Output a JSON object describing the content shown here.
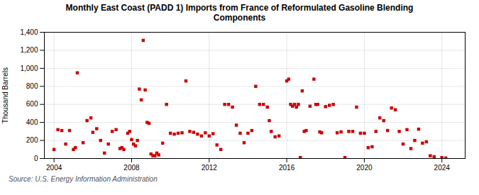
{
  "chart_data": {
    "type": "scatter",
    "title": "Monthly East Coast (PADD 1) Imports from France of Reformulated Gasoline Blending\nComponents",
    "ylabel": "Thousand Barrels",
    "annotations": [
      "Source: U.S. Energy Information Administration"
    ],
    "color": "#cc0000",
    "marker": "square",
    "grid": true,
    "xlim": [
      2003.5,
      2025.2
    ],
    "ylim": [
      0,
      1400
    ],
    "xticks": [
      2004,
      2008,
      2012,
      2016,
      2020,
      2024
    ],
    "yticks": [
      0,
      200,
      400,
      600,
      800,
      {
        "value": 1000,
        "label": "1,000"
      },
      {
        "value": 1200,
        "label": "1,200"
      },
      {
        "value": 1400,
        "label": "1,400"
      }
    ],
    "x": [
      2004.0,
      2004.2,
      2004.4,
      2004.6,
      2004.8,
      2005.0,
      2005.1,
      2005.2,
      2005.5,
      2005.7,
      2005.9,
      2006.0,
      2006.2,
      2006.4,
      2006.6,
      2006.8,
      2007.0,
      2007.2,
      2007.4,
      2007.5,
      2007.6,
      2007.8,
      2007.9,
      2008.0,
      2008.1,
      2008.2,
      2008.3,
      2008.4,
      2008.5,
      2008.6,
      2008.7,
      2008.8,
      2008.9,
      2009.0,
      2009.1,
      2009.2,
      2009.3,
      2009.4,
      2009.6,
      2009.8,
      2010.0,
      2010.2,
      2010.4,
      2010.6,
      2010.8,
      2011.0,
      2011.2,
      2011.4,
      2011.6,
      2011.8,
      2012.0,
      2012.2,
      2012.4,
      2012.6,
      2012.8,
      2013.0,
      2013.2,
      2013.4,
      2013.6,
      2013.8,
      2014.0,
      2014.2,
      2014.4,
      2014.6,
      2014.8,
      2015.0,
      2015.1,
      2015.2,
      2015.4,
      2015.6,
      2016.0,
      2016.1,
      2016.2,
      2016.3,
      2016.4,
      2016.5,
      2016.6,
      2016.7,
      2016.8,
      2016.9,
      2017.0,
      2017.2,
      2017.4,
      2017.5,
      2017.6,
      2017.7,
      2017.8,
      2018.0,
      2018.2,
      2018.4,
      2018.6,
      2018.8,
      2019.0,
      2019.2,
      2019.4,
      2019.6,
      2019.8,
      2020.0,
      2020.2,
      2020.4,
      2020.6,
      2020.8,
      2021.0,
      2021.2,
      2021.4,
      2021.6,
      2021.8,
      2022.0,
      2022.2,
      2022.4,
      2022.6,
      2022.8,
      2023.0,
      2023.2,
      2023.4,
      2023.6,
      2024.0,
      2024.2
    ],
    "values": [
      100,
      320,
      310,
      160,
      310,
      100,
      120,
      950,
      175,
      420,
      450,
      290,
      330,
      200,
      60,
      160,
      300,
      320,
      110,
      120,
      100,
      280,
      300,
      210,
      160,
      140,
      200,
      770,
      650,
      1310,
      760,
      400,
      390,
      50,
      30,
      30,
      60,
      40,
      170,
      600,
      280,
      270,
      280,
      285,
      860,
      300,
      290,
      270,
      250,
      285,
      250,
      275,
      150,
      100,
      600,
      600,
      570,
      370,
      280,
      175,
      280,
      310,
      800,
      600,
      600,
      570,
      420,
      300,
      240,
      250,
      860,
      880,
      600,
      580,
      600,
      570,
      600,
      10,
      750,
      300,
      310,
      580,
      880,
      600,
      600,
      295,
      285,
      575,
      590,
      600,
      285,
      295,
      10,
      300,
      300,
      570,
      280,
      280,
      120,
      130,
      300,
      450,
      420,
      310,
      560,
      540,
      300,
      160,
      320,
      110,
      200,
      325,
      170,
      185,
      30,
      20,
      10,
      5
    ]
  }
}
